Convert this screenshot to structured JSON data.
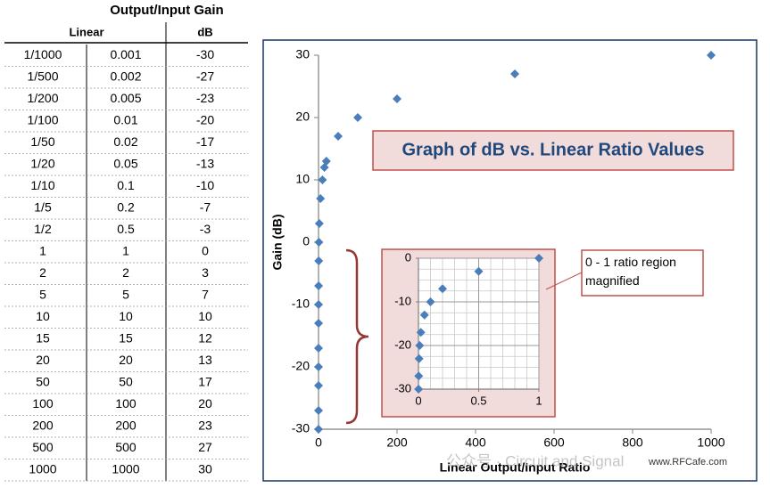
{
  "table": {
    "title": "Output/Input Gain",
    "headers": [
      "Linear",
      "dB"
    ],
    "rows": [
      [
        "1/1000",
        0.001,
        -30
      ],
      [
        "1/500",
        0.002,
        -27
      ],
      [
        "1/200",
        0.005,
        -23
      ],
      [
        "1/100",
        0.01,
        -20
      ],
      [
        "1/50",
        0.02,
        -17
      ],
      [
        "1/20",
        0.05,
        -13
      ],
      [
        "1/10",
        0.1,
        -10
      ],
      [
        "1/5",
        0.2,
        -7
      ],
      [
        "1/2",
        0.5,
        -3
      ],
      [
        "1",
        1,
        0
      ],
      [
        "2",
        2,
        3
      ],
      [
        "5",
        5,
        7
      ],
      [
        "10",
        10,
        10
      ],
      [
        "15",
        15,
        12
      ],
      [
        "20",
        20,
        13
      ],
      [
        "50",
        50,
        17
      ],
      [
        "100",
        100,
        20
      ],
      [
        "200",
        200,
        23
      ],
      [
        "500",
        500,
        27
      ],
      [
        "1000",
        1000,
        30
      ]
    ]
  },
  "chart_data": [
    {
      "type": "scatter",
      "title": "Graph of dB vs. Linear Ratio Values",
      "x_label": "Linear Output/Input Ratio",
      "y_label": "Gain (dB)",
      "x": [
        0.001,
        0.002,
        0.005,
        0.01,
        0.02,
        0.05,
        0.1,
        0.2,
        0.5,
        1,
        2,
        5,
        10,
        15,
        20,
        50,
        100,
        200,
        500,
        1000
      ],
      "values": [
        -30,
        -27,
        -23,
        -20,
        -17,
        -13,
        -10,
        -7,
        -3,
        0,
        3,
        7,
        10,
        12,
        13,
        17,
        20,
        23,
        27,
        30
      ],
      "color": "#4a7ebb",
      "xlim": [
        0,
        1000
      ],
      "ylim": [
        -30,
        30
      ],
      "xticks": [
        0,
        200,
        400,
        600,
        800,
        1000
      ],
      "yticks": [
        -30,
        -20,
        -10,
        0,
        10,
        20,
        30
      ],
      "grid": false
    },
    {
      "type": "scatter",
      "annotation": "0 - 1 ratio region magnified",
      "x": [
        0.001,
        0.002,
        0.005,
        0.01,
        0.02,
        0.05,
        0.1,
        0.2,
        0.5,
        1
      ],
      "values": [
        -30,
        -27,
        -23,
        -20,
        -17,
        -13,
        -10,
        -7,
        -3,
        0
      ],
      "color": "#4a7ebb",
      "xlim": [
        0,
        1
      ],
      "ylim": [
        -30,
        0
      ],
      "xticks": [
        0,
        0.5,
        1
      ],
      "yticks": [
        0,
        -10,
        -20,
        -30
      ],
      "grid": true
    }
  ],
  "watermark": [
    "公众号 · Circuit and Signal",
    "www.RFCafe.com"
  ]
}
